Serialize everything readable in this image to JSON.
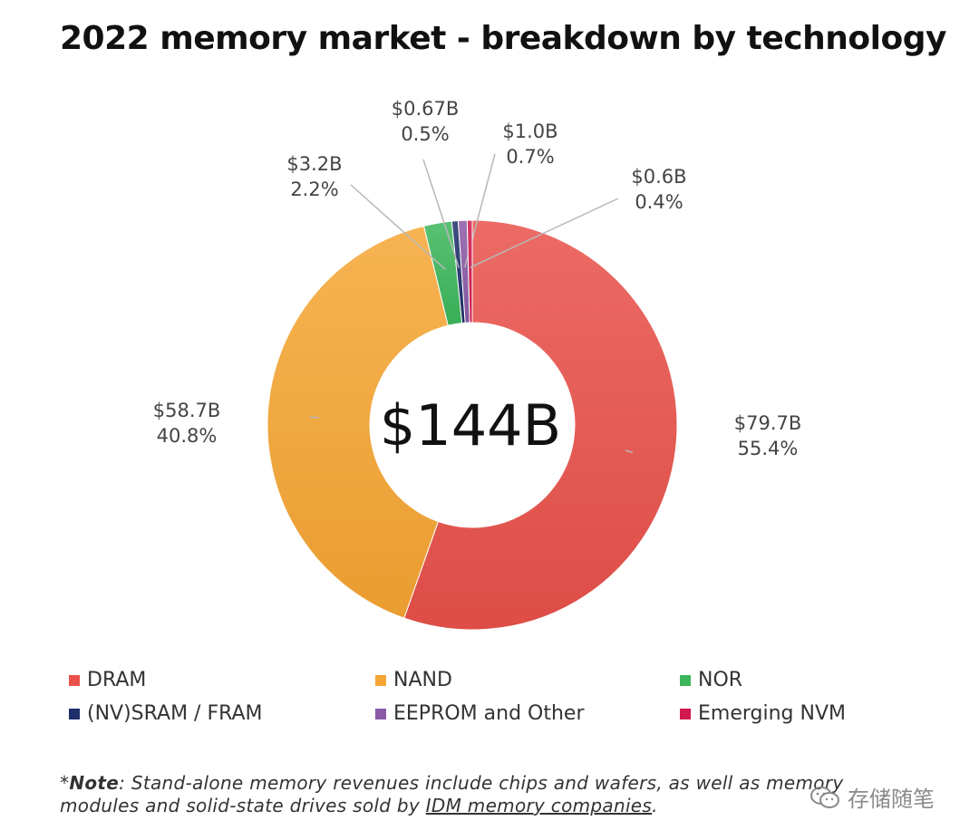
{
  "chart_data": {
    "type": "pie",
    "title": "2022 memory market - breakdown by technology",
    "center_label": "$144B",
    "slices": [
      {
        "name": "DRAM",
        "value_label": "$79.7B",
        "percent_label": "55.4%",
        "percent": 55.4,
        "color": "#e9514a"
      },
      {
        "name": "NAND",
        "value_label": "$58.7B",
        "percent_label": "40.8%",
        "percent": 40.8,
        "color": "#f5a533"
      },
      {
        "name": "NOR",
        "value_label": "$3.2B",
        "percent_label": "2.2%",
        "percent": 2.2,
        "color": "#3cb65a"
      },
      {
        "name": "(NV)SRAM / FRAM",
        "value_label": "$0.67B",
        "percent_label": "0.5%",
        "percent": 0.5,
        "color": "#1f2f6b"
      },
      {
        "name": "EEPROM and Other",
        "value_label": "$1.0B",
        "percent_label": "0.7%",
        "percent": 0.7,
        "color": "#8a5aa6"
      },
      {
        "name": "Emerging NVM",
        "value_label": "$0.6B",
        "percent_label": "0.4%",
        "percent": 0.4,
        "color": "#d0174e"
      }
    ]
  },
  "note": {
    "prefix": "*",
    "bold": "Note",
    "text": ": Stand-alone memory revenues include chips and wafers, as well as memory modules and solid-state drives sold by ",
    "link": "IDM memory companies",
    "suffix": "."
  },
  "watermark": {
    "text": "存储随笔"
  }
}
